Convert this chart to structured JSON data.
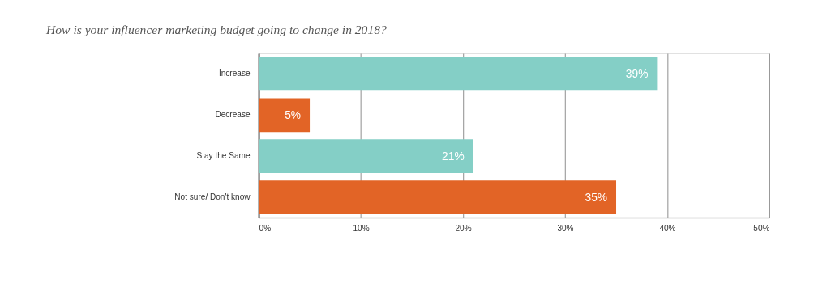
{
  "chart_data": {
    "type": "bar",
    "title": "How is your influencer marketing budget going to change in 2018?",
    "orientation": "horizontal",
    "categories": [
      "Increase",
      "Decrease",
      "Stay the Same",
      "Not sure/ Don't know"
    ],
    "values": [
      39,
      5,
      21,
      35
    ],
    "colors": [
      "#84cfc6",
      "#e26426",
      "#84cfc6",
      "#e26426"
    ],
    "value_labels": [
      "39%",
      "5%",
      "21%",
      "35%"
    ],
    "xlim": [
      0,
      50
    ],
    "xticks": [
      {
        "value": 0,
        "label": "0%"
      },
      {
        "value": 10,
        "label": "10%"
      },
      {
        "value": 20,
        "label": "20%"
      },
      {
        "value": 30,
        "label": "30%"
      },
      {
        "value": 40,
        "label": "40%"
      },
      {
        "value": 50,
        "label": "50%"
      }
    ],
    "grid": "x"
  }
}
